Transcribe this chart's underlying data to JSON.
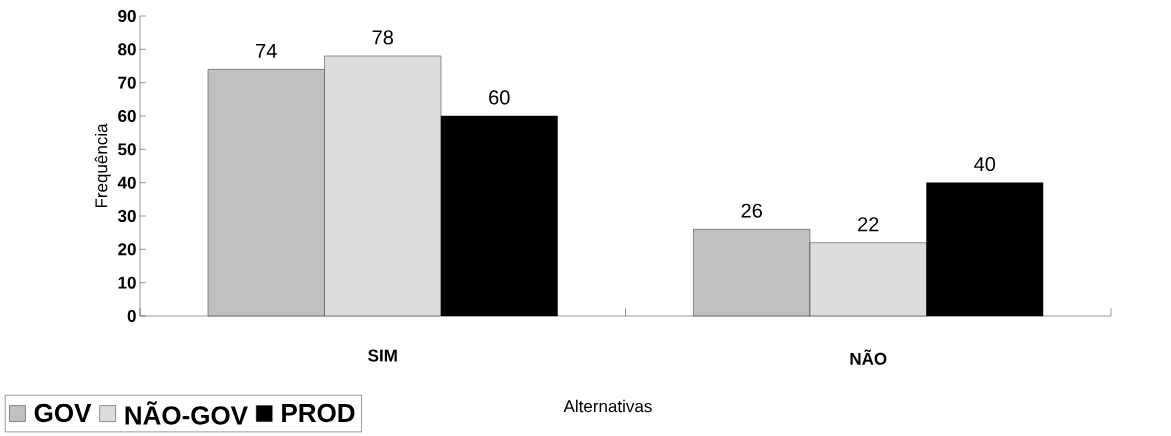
{
  "chart_data": {
    "type": "bar",
    "ylabel": "Frequência",
    "xlabel": "Alternativas",
    "categories": [
      "SIM",
      "NÃO"
    ],
    "series": [
      {
        "name": "GOV",
        "color": "#c0c0c0",
        "values": [
          74,
          26
        ]
      },
      {
        "name": "NÃO-GOV",
        "color": "#dcdcdc",
        "values": [
          78,
          22
        ]
      },
      {
        "name": "PROD",
        "color": "#000000",
        "values": [
          60,
          40
        ]
      }
    ],
    "ylim": [
      0,
      90
    ],
    "yticks": [
      0,
      10,
      20,
      30,
      40,
      50,
      60,
      70,
      80,
      90
    ],
    "data_labels": true,
    "legend": "bottom left",
    "grid": false
  }
}
